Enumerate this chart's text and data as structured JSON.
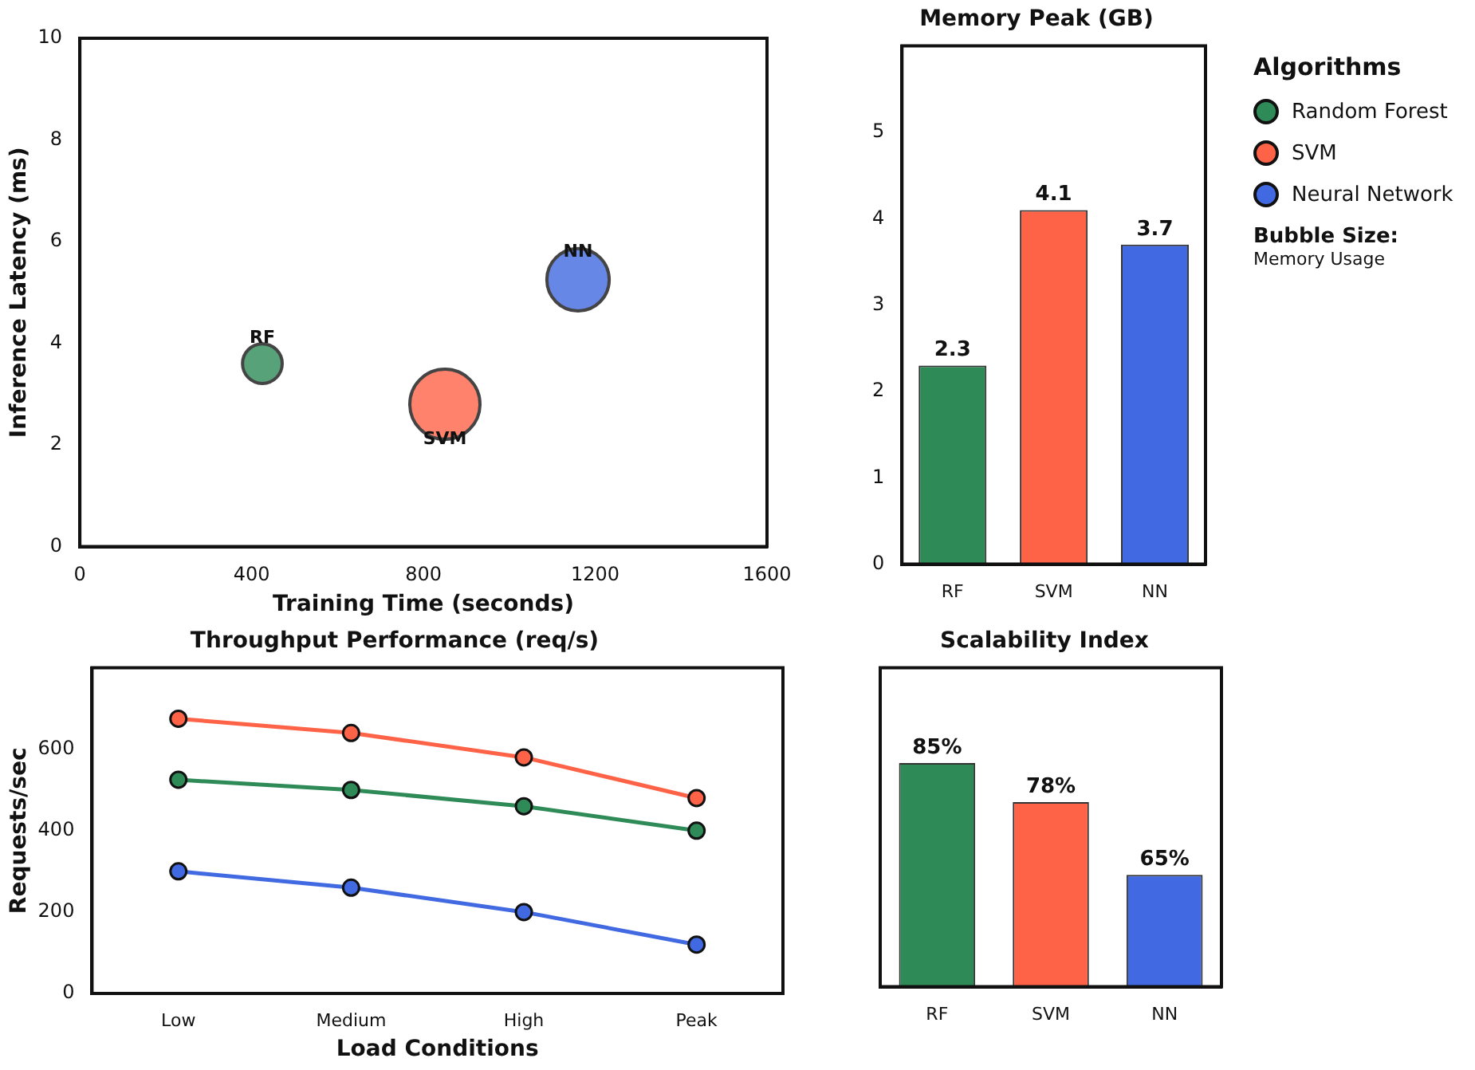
{
  "chart_data": [
    {
      "type": "bubble",
      "xlabel": "Training Time (seconds)",
      "ylabel": "Inference Latency (ms)",
      "xlim": [
        0,
        1600
      ],
      "xticks": [
        0,
        400,
        800,
        1200,
        1600
      ],
      "ylim": [
        0,
        10
      ],
      "yticks": [
        0,
        2,
        4,
        6,
        8,
        10
      ],
      "legend": "right",
      "legend_title": "Algorithms",
      "series": [
        {
          "name": "Random Forest",
          "color": "#2e8b57",
          "x": [
            425
          ],
          "values": [
            3.6
          ],
          "sizes": [
            0.32
          ]
        },
        {
          "name": "SVM",
          "color": "#ff6347",
          "x": [
            850
          ],
          "values": [
            2.8
          ],
          "sizes": [
            1
          ]
        },
        {
          "name": "Neural Network",
          "color": "#4169e1",
          "x": [
            1160
          ],
          "values": [
            5.25
          ],
          "sizes": [
            0.79
          ]
        }
      ],
      "annotations": [
        {
          "text": "RF",
          "x": 425,
          "y": 4.1
        },
        {
          "text": "SVM",
          "x": 850,
          "y": 2.1
        },
        {
          "text": "NN",
          "x": 1160,
          "y": 5.8
        },
        "Bubble Size:",
        "Memory Usage"
      ]
    },
    {
      "type": "bar",
      "title": "Memory Peak (GB)",
      "categories": [
        "RF",
        "SVM",
        "NN"
      ],
      "values": [
        2.3,
        4.1,
        3.7
      ],
      "colors": [
        "#2e8b57",
        "#ff6347",
        "#4169e1"
      ],
      "ylim": [
        0,
        6
      ],
      "yticks": [
        0,
        1,
        2,
        3,
        4,
        5
      ],
      "data_labels": true
    },
    {
      "type": "line",
      "title": "Throughput Performance (req/s)",
      "xlabel": "Load Conditions",
      "ylabel": "Requests/sec",
      "categories": [
        "Low",
        "Medium",
        "High",
        "Peak"
      ],
      "ylim": [
        0,
        800
      ],
      "yticks": [
        0,
        200,
        400,
        600
      ],
      "marker": "circle",
      "series": [
        {
          "color": "#ff6347",
          "values": [
            675,
            640,
            580,
            480
          ]
        },
        {
          "color": "#2e8b57",
          "values": [
            525,
            500,
            460,
            400
          ]
        },
        {
          "color": "#4169e1",
          "values": [
            300,
            260,
            200,
            120
          ]
        }
      ]
    },
    {
      "type": "bar",
      "title": "Scalability Index",
      "categories": [
        "RF",
        "SVM",
        "NN"
      ],
      "values": [
        85,
        78,
        65
      ],
      "colors": [
        "#2e8b57",
        "#ff6347",
        "#4169e1"
      ],
      "value_labels": [
        "85%",
        "78%",
        "65%"
      ],
      "ylim": [
        45,
        102
      ],
      "tick_labels": "x"
    }
  ]
}
